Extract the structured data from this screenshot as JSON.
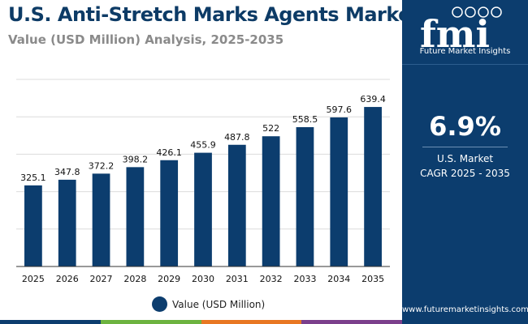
{
  "header": {
    "title": "U.S. Anti-Stretch Marks Agents Market",
    "subtitle": "Value (USD Million) Analysis, 2025-2035"
  },
  "chart_data": {
    "type": "bar",
    "categories": [
      "2025",
      "2026",
      "2027",
      "2028",
      "2029",
      "2030",
      "2031",
      "2032",
      "2033",
      "2034",
      "2035"
    ],
    "series": [
      {
        "name": "Value (USD Million)",
        "values": [
          325.1,
          347.8,
          372.2,
          398.2,
          426.1,
          455.9,
          487.8,
          522,
          558.5,
          597.6,
          639.4
        ]
      }
    ],
    "value_labels": [
      "325.1",
      "347.8",
      "372.2",
      "398.2",
      "426.1",
      "455.9",
      "487.8",
      "522",
      "558.5",
      "597.6",
      "639.4"
    ],
    "ylim": [
      0,
      750
    ],
    "y_tick_labels_shown": false,
    "grid": true,
    "legend_position": "bottom-center",
    "bar_color": "#0c3d6e",
    "grid_color": "#dcdcdc",
    "axis_color": "#333333"
  },
  "legend": {
    "label": "Value (USD Million)",
    "color": "#0c3d6e"
  },
  "bottom_strip_colors": [
    "#0c3d6e",
    "#6cb33f",
    "#e87722",
    "#7b3f8c"
  ],
  "side_panel": {
    "background": "#0c3d6e",
    "logo_text": "fmi",
    "brand_name": "Future Market Insights",
    "cagr_value": "6.9%",
    "cagr_label_line1": "U.S. Market",
    "cagr_label_line2": "CAGR 2025 - 2035",
    "website": "www.futuremarketinsights.com"
  }
}
